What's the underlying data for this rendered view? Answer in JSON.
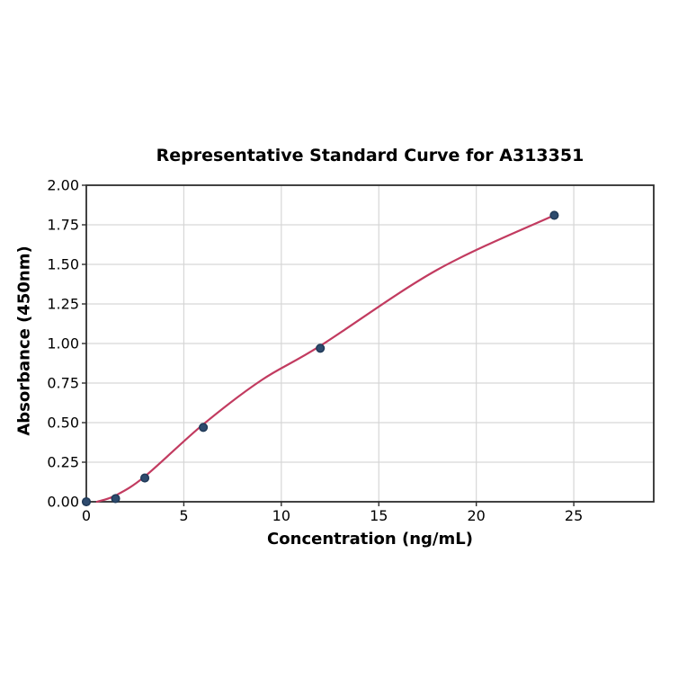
{
  "chart_data": {
    "type": "scatter",
    "title": "Representative Standard Curve for A313351",
    "xlabel": "Concentration (ng/mL)",
    "ylabel": "Absorbance (450nm)",
    "xlim": [
      0,
      29.1
    ],
    "ylim": [
      0,
      2.0
    ],
    "grid": true,
    "xticks": [
      0,
      5,
      10,
      15,
      20,
      25
    ],
    "xtick_labels": [
      "0",
      "5",
      "10",
      "15",
      "20",
      "25"
    ],
    "ytick_values": [
      0,
      0.25,
      0.5,
      0.75,
      1.0,
      1.25,
      1.5,
      1.75,
      2.0
    ],
    "ytick_labels": [
      "0.00",
      "0.25",
      "0.50",
      "0.75",
      "1.00",
      "1.25",
      "1.50",
      "1.75",
      "2.00"
    ],
    "points": {
      "x": [
        0,
        1.5,
        3,
        6,
        12,
        24
      ],
      "y": [
        0.0,
        0.02,
        0.15,
        0.47,
        0.97,
        1.81
      ]
    },
    "fit_curve": {
      "x": [
        0.55,
        1.5,
        3,
        6,
        9,
        12,
        18,
        24
      ],
      "y": [
        0.0,
        0.04,
        0.16,
        0.49,
        0.77,
        0.985,
        1.466,
        1.81
      ]
    },
    "colors": {
      "curve": "#c23b60",
      "marker": "#2e4b6e",
      "marker_edge": "#203a58",
      "grid": "#d6d6d6",
      "spine": "#2e2e2e",
      "text": "#000000",
      "background": "#ffffff"
    }
  }
}
